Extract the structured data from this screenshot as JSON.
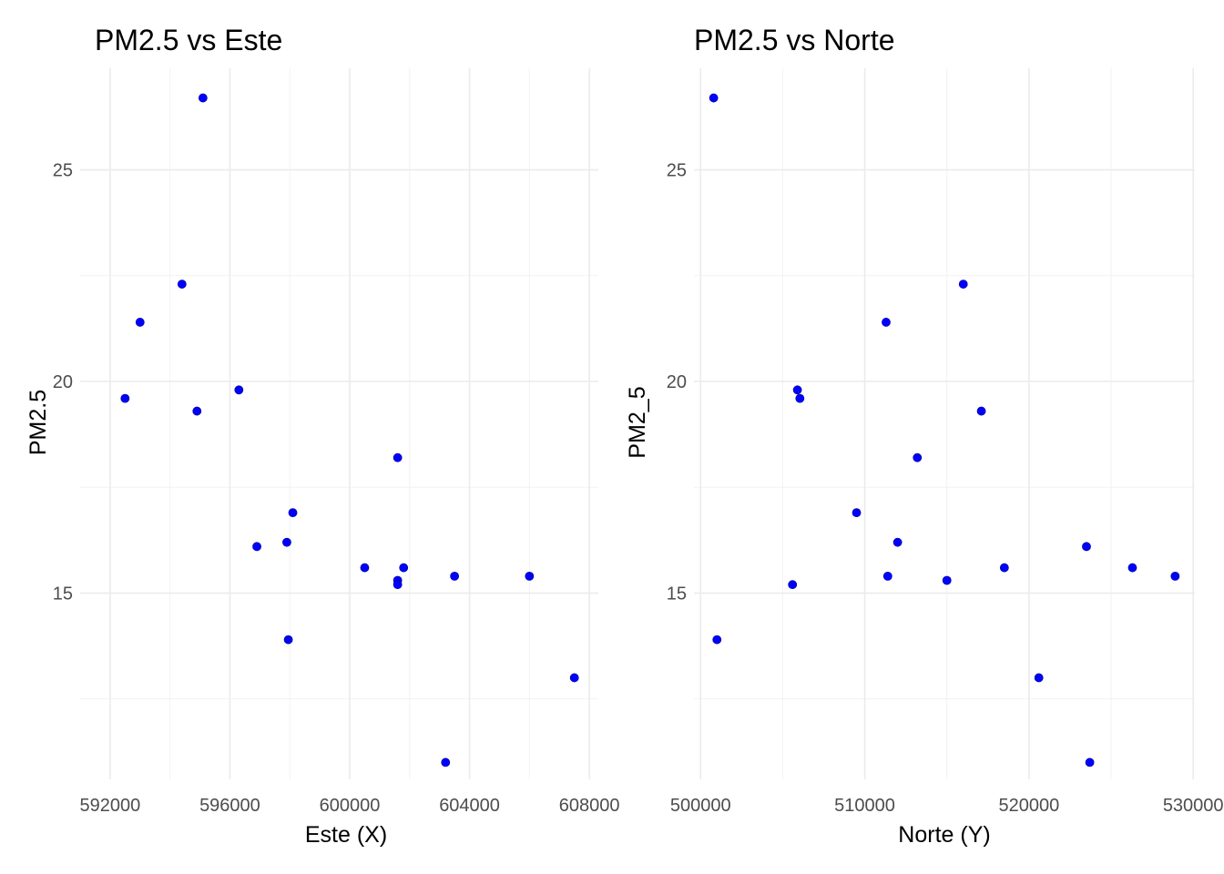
{
  "chart_data": [
    {
      "type": "scatter",
      "title": "PM2.5 vs Este",
      "xlabel": "Este (X)",
      "ylabel": "PM2.5",
      "xlim": [
        591000,
        608300
      ],
      "ylim": [
        10.6,
        27.4
      ],
      "x_ticks": [
        592000,
        596000,
        600000,
        604000,
        608000
      ],
      "x_tick_labels": [
        "592000",
        "596000",
        "600000",
        "604000",
        "608000"
      ],
      "y_ticks": [
        15,
        20,
        25
      ],
      "y_tick_labels": [
        "15",
        "20",
        "25"
      ],
      "point_color": "#0000ff",
      "grid": true,
      "points": [
        {
          "x": 595100,
          "y": 26.7
        },
        {
          "x": 594400,
          "y": 22.3
        },
        {
          "x": 593000,
          "y": 21.4
        },
        {
          "x": 592500,
          "y": 19.6
        },
        {
          "x": 594900,
          "y": 19.3
        },
        {
          "x": 596300,
          "y": 19.8
        },
        {
          "x": 601600,
          "y": 18.2
        },
        {
          "x": 598100,
          "y": 16.9
        },
        {
          "x": 596900,
          "y": 16.1
        },
        {
          "x": 597900,
          "y": 16.2
        },
        {
          "x": 600500,
          "y": 15.6
        },
        {
          "x": 601600,
          "y": 15.3
        },
        {
          "x": 601600,
          "y": 15.2
        },
        {
          "x": 601800,
          "y": 15.6
        },
        {
          "x": 603500,
          "y": 15.4
        },
        {
          "x": 606000,
          "y": 15.4
        },
        {
          "x": 597950,
          "y": 13.9
        },
        {
          "x": 607500,
          "y": 13.0
        },
        {
          "x": 603200,
          "y": 11.0
        }
      ]
    },
    {
      "type": "scatter",
      "title": "PM2.5 vs Norte",
      "xlabel": "Norte (Y)",
      "ylabel": "PM2_5",
      "xlim": [
        499600,
        530100
      ],
      "ylim": [
        10.6,
        27.4
      ],
      "x_ticks": [
        500000,
        510000,
        520000,
        530000
      ],
      "x_tick_labels": [
        "500000",
        "510000",
        "520000",
        "530000"
      ],
      "y_ticks": [
        15,
        20,
        25
      ],
      "y_tick_labels": [
        "15",
        "20",
        "25"
      ],
      "point_color": "#0000ff",
      "grid": true,
      "points": [
        {
          "x": 500800,
          "y": 26.7
        },
        {
          "x": 516000,
          "y": 22.3
        },
        {
          "x": 511300,
          "y": 21.4
        },
        {
          "x": 505900,
          "y": 19.8
        },
        {
          "x": 506050,
          "y": 19.6
        },
        {
          "x": 517100,
          "y": 19.3
        },
        {
          "x": 513200,
          "y": 18.2
        },
        {
          "x": 509500,
          "y": 16.9
        },
        {
          "x": 512000,
          "y": 16.2
        },
        {
          "x": 523500,
          "y": 16.1
        },
        {
          "x": 518500,
          "y": 15.6
        },
        {
          "x": 526300,
          "y": 15.6
        },
        {
          "x": 511400,
          "y": 15.4
        },
        {
          "x": 528900,
          "y": 15.4
        },
        {
          "x": 515000,
          "y": 15.3
        },
        {
          "x": 505600,
          "y": 15.2
        },
        {
          "x": 501000,
          "y": 13.9
        },
        {
          "x": 520600,
          "y": 13.0
        },
        {
          "x": 523700,
          "y": 11.0
        }
      ]
    }
  ]
}
